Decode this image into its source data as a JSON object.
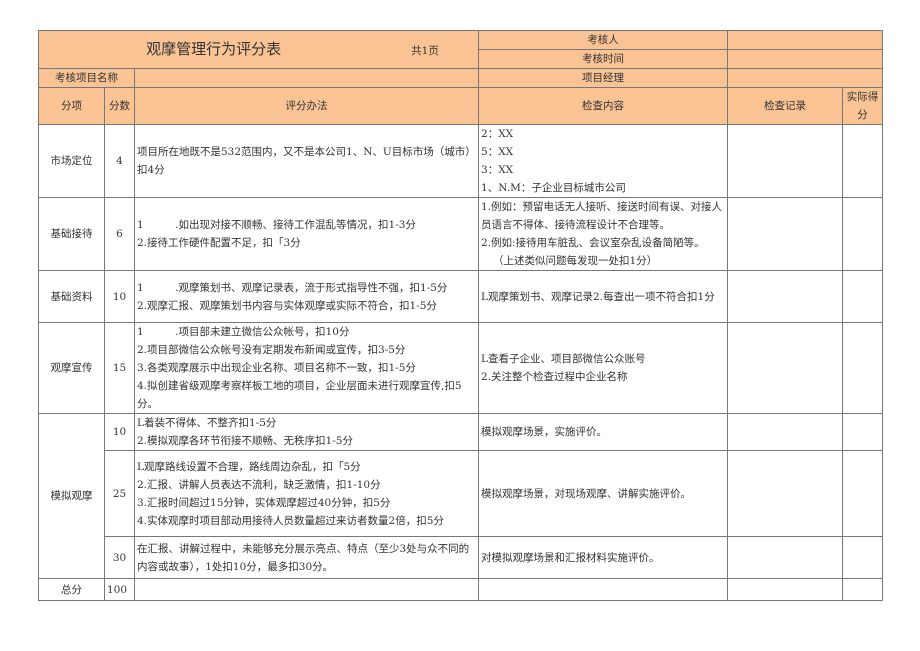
{
  "header": {
    "title": "观摩管理行为评分表",
    "pages": "共1页",
    "reviewer": "考核人",
    "review_time": "考核时间",
    "project_name": "考核项目名称",
    "project_manager": "项目经理"
  },
  "columns": {
    "item": "分项",
    "score": "分数",
    "method": "评分办法",
    "content": "检查内容",
    "record": "检查记录",
    "actual": "实际得分"
  },
  "rows": [
    {
      "item": "市场定位",
      "score": "4",
      "method": [
        "项目所在地既不是532范围内，又不是本公司1、N、U目标市场（城市）扣4分"
      ],
      "content": [
        "2：XX",
        "5：XX",
        "3：XX",
        "1、N.M：子企业目标城市公司"
      ]
    },
    {
      "item": "基础接待",
      "score": "6",
      "method": [
        "1　　　.如出现对接不顺畅、接待工作混乱等情况，扣1-3分",
        "2.接待工作硬件配置不足，扣「3分"
      ],
      "content": [
        "1.例如：预留电话无人接听、接送时间有误、对接人员语言不得体、接待流程设计不合理等。",
        "2.例如:接待用车脏乱、会议室杂乱设备简陋等。",
        "（上述类似问题每发现一处扣1分）"
      ]
    },
    {
      "item": "基础资料",
      "score": "10",
      "method": [
        "1　　　.观摩策划书、观摩记录表，流于形式指导性不强，扣1-5分",
        "2.观摩汇报、观摩策划书内容与实体观摩或实际不符合，扣1-5分"
      ],
      "content": [
        "L观摩策划书、观摩记录2.每查出一项不符合扣1分"
      ]
    },
    {
      "item": "观摩宣传",
      "score": "15",
      "method": [
        "1　　　.项目部未建立微信公众帐号，扣10分",
        "2.项目部微信公众帐号没有定期发布新闻或宣传，扣3-5分",
        "3.各类观摩展示中出现企业名称、项目名称不一致，扣1-5分",
        "4.拟创建省级观摩考察样板工地的项目，企业层面未进行观摩宣传,扣5分。"
      ],
      "content": [
        "L查看子企业、项目部微信公众账号",
        "2.关注整个检查过程中企业名称"
      ]
    },
    {
      "item": "模拟观摩",
      "score": "10",
      "method": [
        "L着装不得体、不整齐扣1-5分",
        "2.模拟观摩各环节衔接不顺畅、无秩序扣1-5分"
      ],
      "content": [
        "模拟观摩场景，实施评价。"
      ]
    },
    {
      "item": "",
      "score": "25",
      "method": [
        "L观摩路线设置不合理，路线周边杂乱，扣「5分",
        "2.汇报、讲解人员表达不流利，缺乏激情，扣1-10分",
        "3.汇报时间超过15分钟，实体观摩超过40分钟，扣5分",
        "4.实体观摩时项目部动用接待人员数量超过来访者数量2倍，扣5分"
      ],
      "content": [
        "模拟观摩场景，对现场观摩、讲解实施评价。"
      ]
    },
    {
      "item": "",
      "score": "30",
      "method": [
        "在汇报、讲解过程中，未能够充分展示亮点、特点（至少3处与众不同的内容或故事），1处扣10分，最多扣30分。"
      ],
      "content": [
        "对模拟观摩场景和汇报材料实施评价。"
      ]
    }
  ],
  "total": {
    "label": "总分",
    "score": "100"
  }
}
